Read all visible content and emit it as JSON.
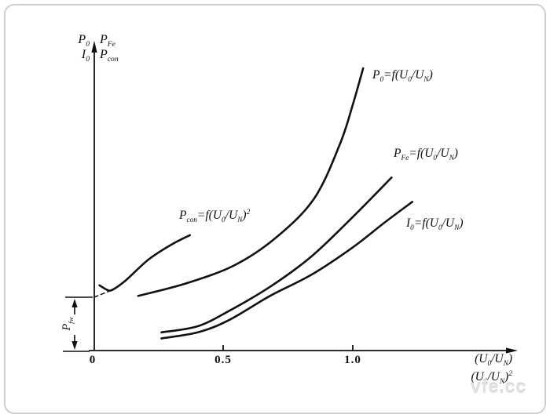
{
  "page": {
    "watermark": "vfe.cc"
  },
  "axis": {
    "x_tick_labels": [
      "0",
      "0.5",
      "1.0"
    ],
    "x_title_line1": "(U_{0}/U_{N})",
    "x_title_line2": "(U_{0}/U_{N})^{2}",
    "y_labels_left": [
      "P_{0}",
      "I_{0}"
    ],
    "y_labels_right": [
      "P_{Fe}",
      "P_{con}"
    ]
  },
  "annotations": {
    "pfw": "P_{fw}",
    "curve_p0": "P_{0}=f(U_{0}/U_{N})",
    "curve_pfe": "P_{Fe}=f(U_{0}/U_{N})",
    "curve_i0": "I_{0}=f(U_{0}/U_{N})",
    "curve_pcon": "P_{con}=f(U_{0}/U_{N})^{2}"
  },
  "chart_data": {
    "type": "line",
    "title": "",
    "xlabel": "(U0/UN) and (U0/UN)^2 (dual-scale horizontal axis)",
    "ylabel": "P0, I0, PFe, Pcon (unlabeled qualitative axis, values normalized 0-1)",
    "x_ticks": [
      0,
      0.5,
      1.0
    ],
    "xlim": [
      0,
      1.6
    ],
    "ylim": [
      0,
      1
    ],
    "grid": false,
    "legend": "inline labels next to each curve",
    "pfw_level": 0.176,
    "series": [
      {
        "id": "p0",
        "name": "P0 = f(U0/UN)",
        "points": [
          [
            0.17,
            0.18
          ],
          [
            0.35,
            0.22
          ],
          [
            0.54,
            0.28
          ],
          [
            0.7,
            0.37
          ],
          [
            0.85,
            0.5
          ],
          [
            0.95,
            0.68
          ],
          [
            1.0,
            0.81
          ],
          [
            1.04,
            0.93
          ]
        ]
      },
      {
        "id": "pfe",
        "name": "PFe = f(U0/UN)",
        "points": [
          [
            0.26,
            0.06
          ],
          [
            0.4,
            0.08
          ],
          [
            0.52,
            0.13
          ],
          [
            0.68,
            0.21
          ],
          [
            0.84,
            0.31
          ],
          [
            1.0,
            0.44
          ],
          [
            1.15,
            0.57
          ]
        ]
      },
      {
        "id": "i0",
        "name": "I0 = f(U0/UN)",
        "points": [
          [
            0.26,
            0.04
          ],
          [
            0.4,
            0.06
          ],
          [
            0.52,
            0.1
          ],
          [
            0.68,
            0.18
          ],
          [
            0.84,
            0.25
          ],
          [
            1.0,
            0.34
          ],
          [
            1.12,
            0.42
          ],
          [
            1.23,
            0.49
          ]
        ]
      },
      {
        "id": "pcon",
        "name": "Pcon = f((U0/UN)^2)",
        "points": [
          [
            0.02,
            0.215
          ],
          [
            0.05,
            0.2
          ],
          [
            0.07,
            0.2
          ],
          [
            0.12,
            0.23
          ],
          [
            0.21,
            0.3
          ],
          [
            0.3,
            0.35
          ],
          [
            0.37,
            0.38
          ]
        ]
      },
      {
        "id": "pcon_dashed",
        "name": "Pcon extrapolation to Pfw intercept",
        "style": "dashed",
        "straight": true,
        "points": [
          [
            0.0,
            0.176
          ],
          [
            0.07,
            0.2
          ]
        ]
      }
    ]
  }
}
